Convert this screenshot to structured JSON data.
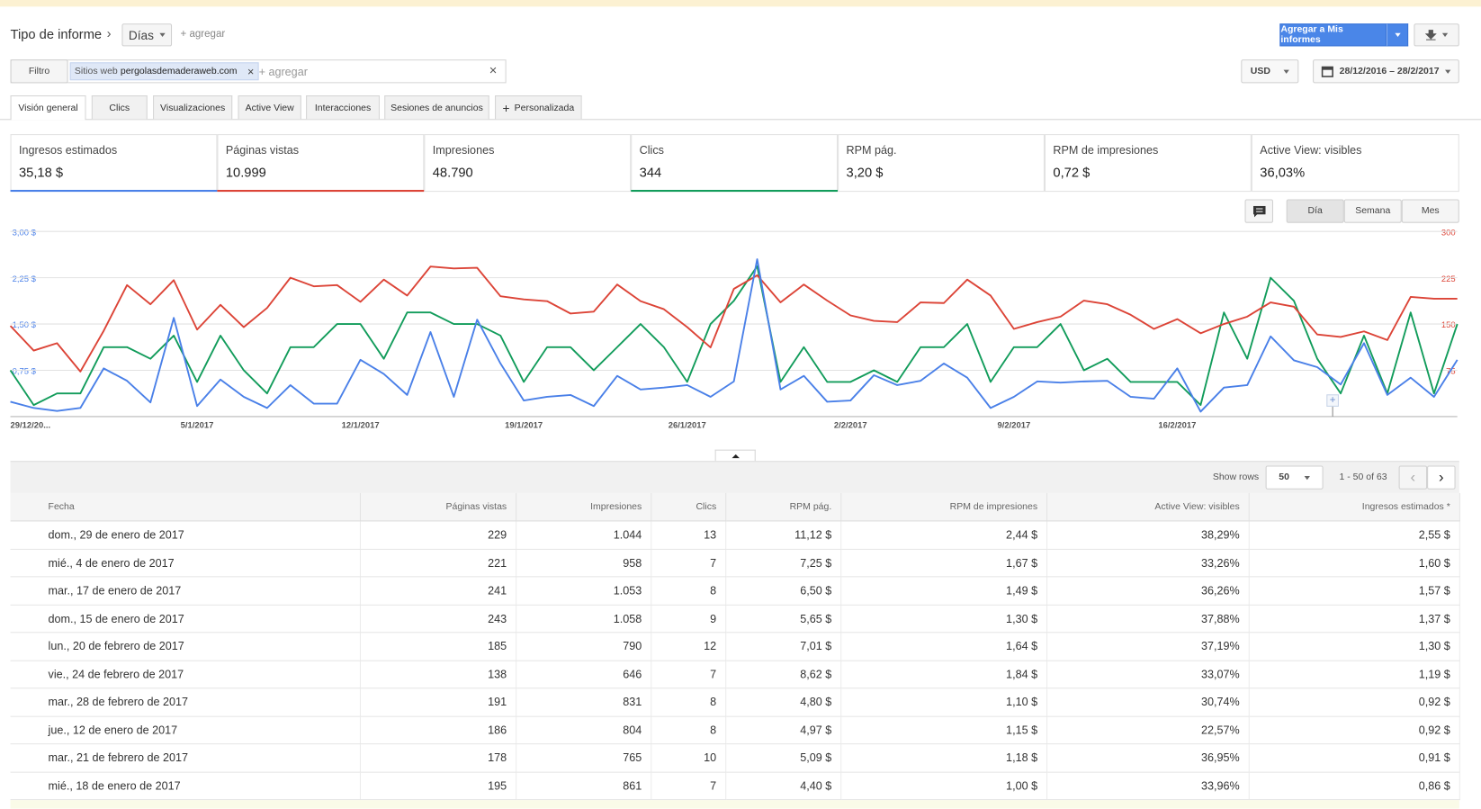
{
  "header": {
    "report_type_label": "Tipo de informe",
    "dimension": "Días",
    "add": "+ agregar",
    "add_report": "Agregar a Mis informes"
  },
  "filter": {
    "label": "Filtro",
    "chip_type": "Sitios web",
    "chip_value": "pergolasdemaderaweb.com",
    "add": "+ agregar",
    "currency": "USD",
    "date_range": "28/12/2016 – 28/2/2017"
  },
  "tabs": [
    "Visión general",
    "Clics",
    "Visualizaciones",
    "Active View",
    "Interacciones",
    "Sesiones de anuncios",
    "Personalizada"
  ],
  "metrics": [
    {
      "value": "35,18 $"
    },
    {
      "value": "10.999"
    },
    {
      "label": "Impresiones",
      "value": "48.790"
    },
    {
      "value": "344"
    },
    {
      "label": "RPM pág.",
      "value": "3,20 $"
    },
    {
      "label": "RPM de impresiones",
      "value": "0,72 $"
    },
    {
      "label": "Active View: visibles",
      "value": "36,03%"
    }
  ],
  "granularity": [
    "Día",
    "Semana",
    "Mes"
  ],
  "chart_data": {
    "type": "line",
    "categories": [
      null,
      "29/12/20...",
      null,
      null,
      null,
      null,
      null,
      null,
      "5/1/2017",
      null,
      null,
      null,
      null,
      null,
      null,
      "12/1/2017",
      null,
      null,
      null,
      null,
      null,
      null,
      "19/1/2017",
      null,
      null,
      null,
      null,
      null,
      null,
      "26/1/2017",
      null,
      null,
      null,
      null,
      null,
      null,
      "2/2/2017",
      null,
      null,
      null,
      null,
      null,
      null,
      "9/2/2017",
      null,
      null,
      null,
      null,
      null,
      null,
      "16/2/2017",
      null,
      null,
      null,
      null,
      null,
      null,
      null,
      null,
      null,
      null,
      null,
      null
    ],
    "series": [
      {
        "name": "Ingresos estimados",
        "color": "#4a80e8",
        "values": [
          0.24,
          0.14,
          0.09,
          0.14,
          0.78,
          0.58,
          0.23,
          1.6,
          0.17,
          0.6,
          0.32,
          0.14,
          0.51,
          0.21,
          0.21,
          0.92,
          0.69,
          0.35,
          1.37,
          0.32,
          1.57,
          0.86,
          0.26,
          0.32,
          0.35,
          0.17,
          0.66,
          0.44,
          0.47,
          0.51,
          0.32,
          0.57,
          2.55,
          0.44,
          0.66,
          0.24,
          0.26,
          0.67,
          0.51,
          0.58,
          0.86,
          0.63,
          0.14,
          0.32,
          0.57,
          0.55,
          0.57,
          0.58,
          0.32,
          0.29,
          0.78,
          0.08,
          0.47,
          0.51,
          1.3,
          0.91,
          0.8,
          0.52,
          1.19,
          0.35,
          0.63,
          0.32,
          0.92
        ]
      },
      {
        "name": "Páginas vistas",
        "color": "#dc4437",
        "axis": "y2",
        "values": [
          147,
          107,
          119,
          73,
          139,
          213,
          182,
          221,
          141,
          181,
          145,
          176,
          225,
          211,
          213,
          186,
          222,
          196,
          243,
          240,
          241,
          195,
          190,
          187,
          167,
          170,
          214,
          187,
          174,
          145,
          112,
          207,
          229,
          185,
          214,
          188,
          164,
          155,
          153,
          185,
          184,
          222,
          196,
          142,
          153,
          162,
          188,
          182,
          165,
          142,
          158,
          135,
          150,
          162,
          185,
          178,
          133,
          129,
          138,
          124,
          194,
          191,
          191
        ]
      },
      {
        "name": "Clics",
        "color": "#129c5b",
        "axis": "y3",
        "values": [
          4,
          1,
          2,
          2,
          6,
          6,
          5,
          7,
          3,
          7,
          4,
          2,
          6,
          6,
          8,
          8,
          5,
          9,
          9,
          8,
          8,
          7,
          3,
          6,
          6,
          4,
          6,
          8,
          6,
          3,
          8,
          10,
          13,
          3,
          6,
          3,
          3,
          4,
          3,
          6,
          6,
          8,
          3,
          6,
          6,
          8,
          4,
          5,
          3,
          3,
          3,
          1,
          9,
          5,
          12,
          10,
          5,
          2,
          7,
          2,
          9,
          2,
          8
        ]
      }
    ],
    "ylim": [
      0,
      3
    ],
    "yticks": [
      {
        "value": 0.75,
        "label": "0,75 $"
      },
      {
        "value": 1.5,
        "label": "1,50 $"
      },
      {
        "value": 2.25,
        "label": "2,25 $"
      },
      {
        "value": 3,
        "label": "3,00 $"
      }
    ],
    "y2lim": [
      0,
      300
    ],
    "y2ticks": [
      75,
      150,
      225,
      300
    ],
    "y3lim": [
      0,
      16
    ],
    "grid": true
  },
  "table": {
    "show_rows_label": "Show rows",
    "rows_per_page": "50",
    "range": "1 - 50 of 63",
    "columns": [
      "Fecha",
      "Páginas vistas",
      "Impresiones",
      "Clics",
      "RPM pág.",
      "RPM de impresiones",
      "Active View: visibles",
      "Ingresos estimados *"
    ],
    "rows": [
      [
        "dom., 29 de enero de 2017",
        "229",
        "1.044",
        "13",
        "11,12 $",
        "2,44 $",
        "38,29%",
        "2,55 $"
      ],
      [
        "mié., 4 de enero de 2017",
        "221",
        "958",
        "7",
        "7,25 $",
        "1,67 $",
        "33,26%",
        "1,60 $"
      ],
      [
        "mar., 17 de enero de 2017",
        "241",
        "1.053",
        "8",
        "6,50 $",
        "1,49 $",
        "36,26%",
        "1,57 $"
      ],
      [
        "dom., 15 de enero de 2017",
        "243",
        "1.058",
        "9",
        "5,65 $",
        "1,30 $",
        "37,88%",
        "1,37 $"
      ],
      [
        "lun., 20 de febrero de 2017",
        "185",
        "790",
        "12",
        "7,01 $",
        "1,64 $",
        "37,19%",
        "1,30 $"
      ],
      [
        "vie., 24 de febrero de 2017",
        "138",
        "646",
        "7",
        "8,62 $",
        "1,84 $",
        "33,07%",
        "1,19 $"
      ],
      [
        "mar., 28 de febrero de 2017",
        "191",
        "831",
        "8",
        "4,80 $",
        "1,10 $",
        "30,74%",
        "0,92 $"
      ],
      [
        "jue., 12 de enero de 2017",
        "186",
        "804",
        "8",
        "4,97 $",
        "1,15 $",
        "22,57%",
        "0,92 $"
      ],
      [
        "mar., 21 de febrero de 2017",
        "178",
        "765",
        "10",
        "5,09 $",
        "1,18 $",
        "36,95%",
        "0,91 $"
      ],
      [
        "mié., 18 de enero de 2017",
        "195",
        "861",
        "7",
        "4,40 $",
        "1,00 $",
        "33,96%",
        "0,86 $"
      ]
    ]
  }
}
